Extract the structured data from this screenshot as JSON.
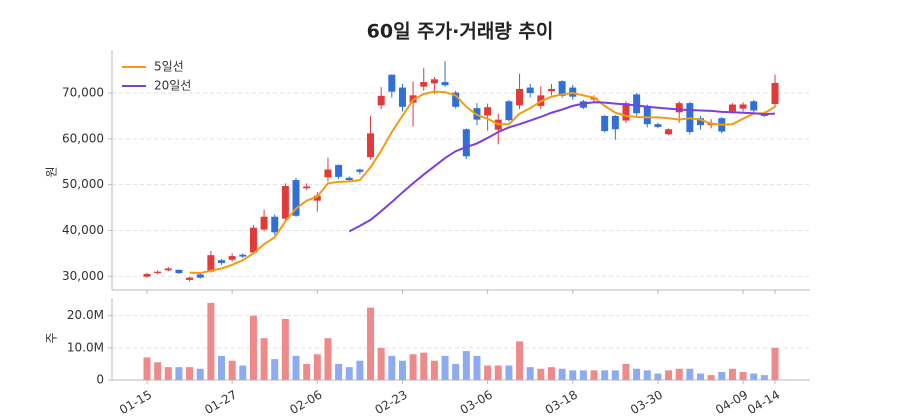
{
  "chart_data": {
    "type": "candlestick",
    "title": "60일 주가·거래량 추이",
    "ylabel": "원",
    "volume_ylabel": "주",
    "categories": [
      "01-15",
      null,
      null,
      null,
      null,
      null,
      null,
      null,
      "01-27",
      null,
      null,
      null,
      null,
      null,
      null,
      null,
      "02-06",
      null,
      null,
      null,
      null,
      null,
      null,
      null,
      "02-23",
      null,
      null,
      null,
      null,
      null,
      null,
      null,
      "03-06",
      null,
      null,
      null,
      null,
      null,
      null,
      null,
      "03-18",
      null,
      null,
      null,
      null,
      null,
      null,
      null,
      "03-30",
      null,
      null,
      null,
      null,
      null,
      null,
      null,
      "04-09",
      null,
      null,
      "04-14"
    ],
    "open": [
      29900,
      30700,
      31300,
      31400,
      29200,
      30400,
      31000,
      33500,
      33600,
      34700,
      35200,
      40200,
      43000,
      42600,
      51000,
      49200,
      46500,
      51600,
      54300,
      51500,
      53300,
      56000,
      67300,
      74000,
      71200,
      67900,
      71400,
      72100,
      72400,
      70100,
      62100,
      66700,
      65100,
      62000,
      68200,
      67300,
      71200,
      67200,
      70400,
      72600,
      71200,
      68200,
      68600,
      65000,
      65000,
      64000,
      69700,
      67200,
      63200,
      61000,
      65800,
      67800,
      64500,
      63000,
      64500,
      66000,
      66600,
      68200,
      65500,
      67600
    ],
    "high": [
      30800,
      31300,
      32000,
      31500,
      29900,
      30500,
      35500,
      33800,
      35000,
      35000,
      41200,
      44500,
      43500,
      50300,
      51500,
      50300,
      48400,
      55900,
      54400,
      51800,
      53500,
      65000,
      71300,
      74100,
      72000,
      72500,
      75500,
      73500,
      77000,
      70500,
      62300,
      67800,
      67700,
      65500,
      68500,
      74200,
      72000,
      71500,
      72000,
      72800,
      71800,
      68500,
      69500,
      65200,
      65200,
      68200,
      70000,
      67500,
      63500,
      62300,
      68200,
      68100,
      65000,
      64300,
      64800,
      67800,
      68000,
      68500,
      66000,
      74000
    ],
    "low": [
      29700,
      30400,
      31100,
      30500,
      28900,
      29500,
      30800,
      32500,
      33200,
      34000,
      34800,
      39800,
      39000,
      42000,
      43000,
      48800,
      44100,
      50700,
      51200,
      50600,
      52300,
      55500,
      66500,
      69000,
      66000,
      62700,
      70500,
      69800,
      71400,
      66600,
      55600,
      63000,
      61800,
      58800,
      63800,
      66500,
      69000,
      66500,
      69500,
      69000,
      68500,
      66500,
      68000,
      61400,
      59800,
      63500,
      65000,
      62500,
      62300,
      60800,
      63500,
      61000,
      62000,
      62300,
      61200,
      65500,
      66000,
      65800,
      64800,
      66800
    ],
    "close": [
      30500,
      31000,
      31700,
      30700,
      29700,
      29700,
      34600,
      32900,
      34400,
      34300,
      40600,
      43000,
      39600,
      49700,
      43200,
      49600,
      47600,
      53300,
      51700,
      51000,
      52800,
      61200,
      69400,
      70300,
      67000,
      69500,
      72400,
      73000,
      71700,
      67000,
      56200,
      64200,
      66900,
      64200,
      64100,
      70900,
      70000,
      69500,
      70900,
      69400,
      69200,
      66800,
      69000,
      61700,
      62100,
      67800,
      65600,
      63200,
      62600,
      62100,
      67800,
      61500,
      63000,
      63500,
      61600,
      67500,
      67500,
      66200,
      65000,
      72200
    ],
    "volume": [
      7000000,
      5500000,
      4000000,
      4000000,
      4000000,
      3500000,
      24000000,
      7500000,
      6000000,
      4500000,
      20000000,
      13000000,
      6500000,
      19000000,
      7500000,
      5000000,
      8000000,
      13000000,
      5000000,
      4000000,
      6000000,
      22500000,
      10000000,
      7500000,
      6000000,
      8000000,
      8500000,
      6000000,
      7500000,
      5000000,
      9000000,
      7500000,
      4500000,
      4500000,
      4500000,
      12000000,
      4000000,
      3500000,
      4000000,
      3500000,
      3000000,
      3000000,
      3000000,
      3000000,
      3000000,
      5000000,
      3500000,
      3000000,
      2000000,
      3000000,
      3500000,
      3500000,
      2000000,
      1500000,
      2500000,
      3500000,
      2500000,
      2000000,
      1500000,
      10000000
    ],
    "up_color": "#e03a3a",
    "down_color": "#2f6fd6",
    "up_volume_color": "#ef8a8a",
    "down_volume_color": "#8eaaf0",
    "series": [
      {
        "name": "5일선",
        "color": "#f39c12",
        "values": [
          null,
          null,
          null,
          null,
          30800,
          30700,
          31200,
          31700,
          32500,
          33500,
          35000,
          37000,
          38500,
          42000,
          44800,
          46500,
          47400,
          50300,
          50600,
          50700,
          51000,
          53800,
          57400,
          61500,
          65000,
          68500,
          69800,
          70300,
          70200,
          69500,
          67000,
          65200,
          64400,
          63200,
          63200,
          65500,
          66700,
          68200,
          69200,
          69700,
          70000,
          69500,
          69000,
          67200,
          65700,
          65000,
          64800,
          64700,
          64700,
          64500,
          64200,
          64500,
          64200,
          63300,
          63100,
          63200,
          64400,
          65500,
          65600,
          67000
        ]
      },
      {
        "name": "20일선",
        "color": "#7b3fe0",
        "values": [
          null,
          null,
          null,
          null,
          null,
          null,
          null,
          null,
          null,
          null,
          null,
          null,
          null,
          null,
          null,
          null,
          null,
          null,
          null,
          39800,
          41000,
          42300,
          44200,
          46200,
          48300,
          50300,
          52200,
          54000,
          55800,
          57300,
          58200,
          59000,
          60200,
          61500,
          62500,
          63200,
          64000,
          64800,
          65700,
          66400,
          67200,
          67700,
          68000,
          67900,
          67700,
          67500,
          67300,
          67000,
          66800,
          66600,
          66400,
          66300,
          66200,
          66100,
          65900,
          65800,
          65700,
          65600,
          65400,
          65500
        ]
      }
    ],
    "ylim": [
      27000,
      79400
    ],
    "yticks": [
      {
        "value": 30000,
        "label": "30,000"
      },
      {
        "value": 40000,
        "label": "40,000"
      },
      {
        "value": 50000,
        "label": "50,000"
      },
      {
        "value": 60000,
        "label": "60,000"
      },
      {
        "value": 70000,
        "label": "70,000"
      }
    ],
    "volume_ylim": [
      0,
      25500000
    ],
    "volume_yticks": [
      0,
      {
        "value": 10000000,
        "label": "10.0M"
      },
      {
        "value": 20000000,
        "label": "20.0M"
      }
    ],
    "grid": true,
    "legend": "upper left"
  }
}
